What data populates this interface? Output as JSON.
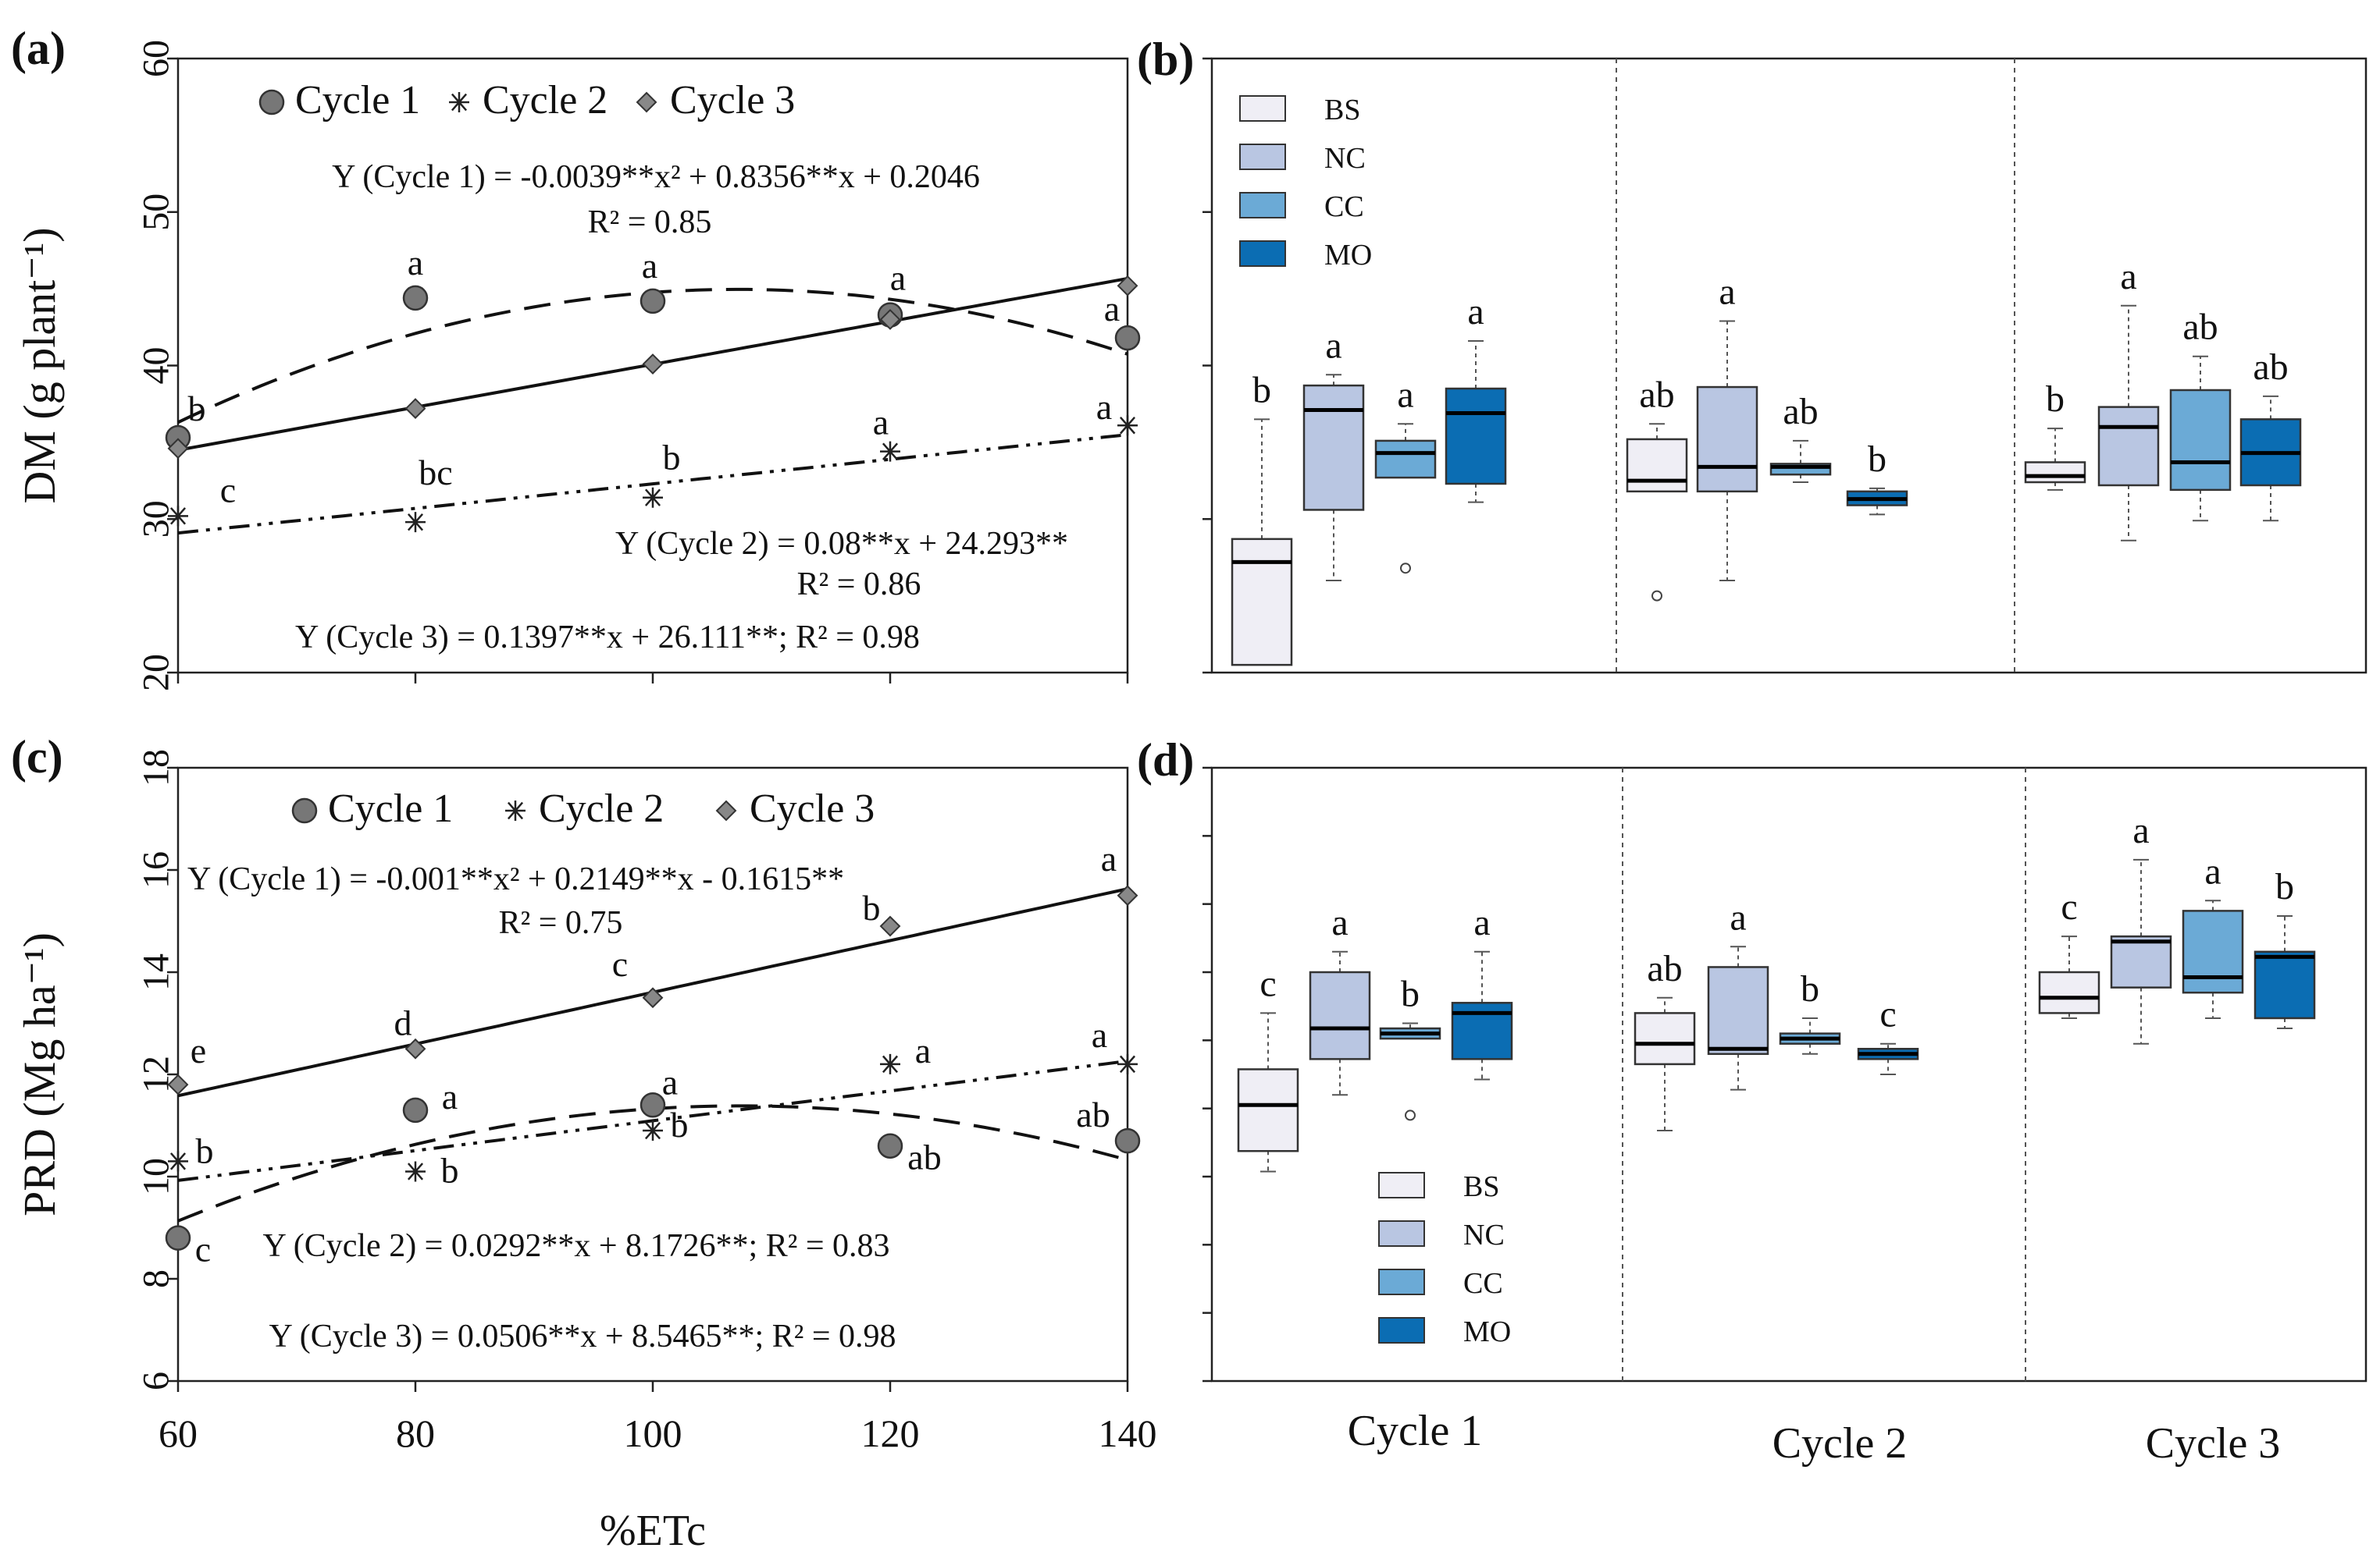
{
  "chart_data": [
    {
      "id": "a",
      "panel_label": "(a)",
      "type": "scatter",
      "ylabel": "DM (g plant⁻¹)",
      "xlim": [
        60,
        140
      ],
      "ylim": [
        20,
        60
      ],
      "xticks": [
        "60",
        "80",
        "100",
        "120",
        "140"
      ],
      "yticks": [
        "20",
        "30",
        "40",
        "50",
        "60"
      ],
      "legend": [
        "Cycle 1",
        "Cycle 2",
        "Cycle 3"
      ],
      "x": [
        60,
        80,
        100,
        120,
        140
      ],
      "series": [
        {
          "name": "Cycle 1",
          "marker": "circle",
          "values": [
            35.3,
            44.4,
            44.2,
            43.3,
            41.8
          ],
          "letters": [
            "b",
            "a",
            "a",
            "a",
            "a"
          ],
          "fit": {
            "type": "quad",
            "a": -0.0039,
            "b": 0.8356,
            "c": 0.2046
          }
        },
        {
          "name": "Cycle 2",
          "marker": "star",
          "values": [
            30.2,
            29.8,
            31.4,
            34.4,
            36.1
          ],
          "letters": [
            "c",
            "bc",
            "b",
            "a",
            "a"
          ],
          "fit": {
            "type": "lin",
            "m": 0.08,
            "b": 24.293
          }
        },
        {
          "name": "Cycle 3",
          "marker": "diamond",
          "values": [
            34.6,
            37.2,
            40.1,
            43.0,
            45.2
          ],
          "letters": [],
          "fit": {
            "type": "lin",
            "m": 0.1397,
            "b": 26.111
          }
        }
      ],
      "equations": [
        "Y (Cycle 1) = -0.0039**x² + 0.8356**x + 0.2046",
        "R² = 0.85",
        "Y (Cycle 2) = 0.08**x + 24.293**",
        "R² = 0.86",
        "Y (Cycle 3) = 0.1397**x + 26.111**; R² = 0.98"
      ]
    },
    {
      "id": "b",
      "panel_label": "(b)",
      "type": "box",
      "ylim": [
        20,
        60
      ],
      "groups": [
        "Cycle 1",
        "Cycle 2",
        "Cycle 3"
      ],
      "treatments": [
        "BS",
        "NC",
        "CC",
        "MO"
      ],
      "colors": [
        "#efeef5",
        "#b9c6e2",
        "#6baad6",
        "#0b6db3"
      ],
      "boxes": [
        [
          {
            "wlo": null,
            "q1": 20.5,
            "med": 27.2,
            "q3": 28.7,
            "whi": 36.5,
            "outliers": [],
            "letter": "b"
          },
          {
            "wlo": 26.0,
            "q1": 30.6,
            "med": 37.1,
            "q3": 38.7,
            "whi": 39.4,
            "outliers": [],
            "letter": "a"
          },
          {
            "wlo": null,
            "q1": 32.7,
            "med": 34.3,
            "q3": 35.1,
            "whi": 36.2,
            "outliers": [
              26.8
            ],
            "letter": "a"
          },
          {
            "wlo": 31.1,
            "q1": 32.3,
            "med": 36.9,
            "q3": 38.5,
            "whi": 41.6,
            "outliers": [],
            "letter": "a"
          }
        ],
        [
          {
            "wlo": null,
            "q1": 31.8,
            "med": 32.5,
            "q3": 35.2,
            "whi": 36.2,
            "outliers": [
              25.0
            ],
            "letter": "ab"
          },
          {
            "wlo": 26.0,
            "q1": 31.8,
            "med": 33.4,
            "q3": 38.6,
            "whi": 42.9,
            "outliers": [],
            "letter": "a"
          },
          {
            "wlo": 32.4,
            "q1": 32.9,
            "med": 33.4,
            "q3": 33.6,
            "whi": 35.1,
            "outliers": [],
            "letter": "ab"
          },
          {
            "wlo": 30.3,
            "q1": 30.9,
            "med": 31.3,
            "q3": 31.8,
            "whi": 32.0,
            "outliers": [],
            "letter": "b"
          }
        ],
        [
          {
            "wlo": 31.9,
            "q1": 32.4,
            "med": 32.8,
            "q3": 33.7,
            "whi": 35.9,
            "outliers": [],
            "letter": "b"
          },
          {
            "wlo": 28.6,
            "q1": 32.2,
            "med": 36.0,
            "q3": 37.3,
            "whi": 43.9,
            "outliers": [],
            "letter": "a"
          },
          {
            "wlo": 29.9,
            "q1": 31.9,
            "med": 33.7,
            "q3": 38.4,
            "whi": 40.6,
            "outliers": [],
            "letter": "ab"
          },
          {
            "wlo": 29.9,
            "q1": 32.2,
            "med": 34.3,
            "q3": 36.5,
            "whi": 38.0,
            "outliers": [],
            "letter": "ab"
          }
        ]
      ]
    },
    {
      "id": "c",
      "panel_label": "(c)",
      "type": "scatter",
      "ylabel": "PRD (Mg ha⁻¹)",
      "xlabel": "%ETc",
      "xlim": [
        60,
        140
      ],
      "ylim": [
        6,
        18
      ],
      "xticks": [
        "60",
        "80",
        "100",
        "120",
        "140"
      ],
      "yticks": [
        "6",
        "8",
        "10",
        "12",
        "14",
        "16",
        "18"
      ],
      "legend": [
        "Cycle 1",
        "Cycle 2",
        "Cycle 3"
      ],
      "x": [
        60,
        80,
        100,
        120,
        140
      ],
      "series": [
        {
          "name": "Cycle 1",
          "marker": "circle",
          "values": [
            8.8,
            11.3,
            11.4,
            10.6,
            10.7
          ],
          "letters": [
            "c",
            "a",
            "a",
            "ab",
            "ab"
          ],
          "fit": {
            "type": "quad",
            "a": -0.001,
            "b": 0.2149,
            "c": -0.1615
          }
        },
        {
          "name": "Cycle 2",
          "marker": "star",
          "values": [
            10.3,
            10.1,
            10.9,
            12.2,
            12.2
          ],
          "letters": [
            "b",
            "b",
            "b",
            "a",
            "a"
          ],
          "fit": {
            "type": "lin",
            "m": 0.0292,
            "b": 8.1726
          }
        },
        {
          "name": "Cycle 3",
          "marker": "diamond",
          "values": [
            11.8,
            12.5,
            13.5,
            14.9,
            15.5
          ],
          "letters": [
            "e",
            "d",
            "c",
            "b",
            "a"
          ],
          "fit": {
            "type": "lin",
            "m": 0.0506,
            "b": 8.5465
          }
        }
      ],
      "equations": [
        "Y (Cycle 1) = -0.001**x² + 0.2149**x - 0.1615**",
        "R² = 0.75",
        "Y (Cycle 2) = 0.0292**x + 8.1726**; R² = 0.83",
        "Y (Cycle 3) = 0.0506**x + 8.5465**; R² = 0.98"
      ]
    },
    {
      "id": "d",
      "panel_label": "(d)",
      "type": "box",
      "ylim": [
        6,
        18
      ],
      "groups": [
        "Cycle 1",
        "Cycle 2",
        "Cycle 3"
      ],
      "treatments": [
        "BS",
        "NC",
        "CC",
        "MO"
      ],
      "colors": [
        "#efeef5",
        "#b9c6e2",
        "#6baad6",
        "#0b6db3"
      ],
      "boxes": [
        [
          {
            "wlo": 10.1,
            "q1": 10.5,
            "med": 11.4,
            "q3": 12.1,
            "whi": 13.2,
            "outliers": [],
            "letter": "c"
          },
          {
            "wlo": 11.6,
            "q1": 12.3,
            "med": 12.9,
            "q3": 14.0,
            "whi": 14.4,
            "outliers": [],
            "letter": "a"
          },
          {
            "wlo": null,
            "q1": 12.7,
            "med": 12.8,
            "q3": 12.9,
            "whi": 13.0,
            "outliers": [
              11.2
            ],
            "letter": "b"
          },
          {
            "wlo": 11.9,
            "q1": 12.3,
            "med": 13.2,
            "q3": 13.4,
            "whi": 14.4,
            "outliers": [],
            "letter": "a"
          }
        ],
        [
          {
            "wlo": 10.9,
            "q1": 12.2,
            "med": 12.6,
            "q3": 13.2,
            "whi": 13.5,
            "outliers": [],
            "letter": "ab"
          },
          {
            "wlo": 11.7,
            "q1": 12.4,
            "med": 12.5,
            "q3": 14.1,
            "whi": 14.5,
            "outliers": [],
            "letter": "a"
          },
          {
            "wlo": 12.4,
            "q1": 12.6,
            "med": 12.7,
            "q3": 12.8,
            "whi": 13.1,
            "outliers": [],
            "letter": "b"
          },
          {
            "wlo": 12.0,
            "q1": 12.3,
            "med": 12.4,
            "q3": 12.5,
            "whi": 12.6,
            "outliers": [],
            "letter": "c"
          }
        ],
        [
          {
            "wlo": 13.1,
            "q1": 13.2,
            "med": 13.5,
            "q3": 14.0,
            "whi": 14.7,
            "outliers": [],
            "letter": "c"
          },
          {
            "wlo": 12.6,
            "q1": 13.7,
            "med": 14.6,
            "q3": 14.7,
            "whi": 16.2,
            "outliers": [],
            "letter": "a"
          },
          {
            "wlo": 13.1,
            "q1": 13.6,
            "med": 13.9,
            "q3": 15.2,
            "whi": 15.4,
            "outliers": [],
            "letter": "a"
          },
          {
            "wlo": 12.9,
            "q1": 13.1,
            "med": 14.3,
            "q3": 14.4,
            "whi": 15.1,
            "outliers": [],
            "letter": "b"
          }
        ]
      ]
    }
  ]
}
